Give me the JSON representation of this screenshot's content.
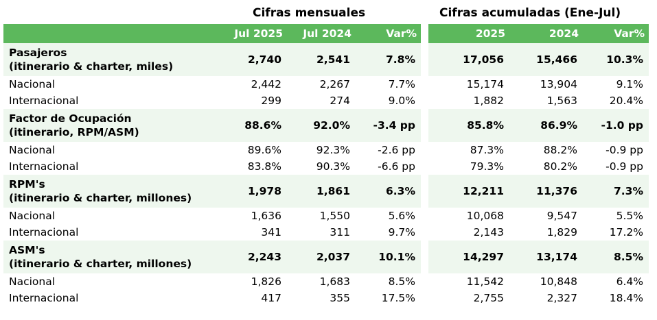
{
  "monthly_title": "Cifras mensuales",
  "cumulative_title": "Cifras acumuladas (Ene-Jul)",
  "headers": {
    "m1": "Jul 2025",
    "m2": "Jul 2024",
    "mvar": "Var%",
    "c1": "2025",
    "c2": "2024",
    "cvar": "Var%"
  },
  "groups": [
    {
      "label1": "Pasajeros",
      "label2": "(itinerario & charter, miles)",
      "values": [
        "2,740",
        "2,541",
        "7.8%",
        "17,056",
        "15,466",
        "10.3%"
      ],
      "rows": [
        {
          "label": "Nacional",
          "values": [
            "2,442",
            "2,267",
            "7.7%",
            "15,174",
            "13,904",
            "9.1%"
          ]
        },
        {
          "label": "Internacional",
          "values": [
            "299",
            "274",
            "9.0%",
            "1,882",
            "1,563",
            "20.4%"
          ]
        }
      ]
    },
    {
      "label1": "Factor de Ocupación",
      "label2": "(itinerario, RPM/ASM)",
      "values": [
        "88.6%",
        "92.0%",
        "-3.4 pp",
        "85.8%",
        "86.9%",
        "-1.0 pp"
      ],
      "rows": [
        {
          "label": "Nacional",
          "values": [
            "89.6%",
            "92.3%",
            "-2.6 pp",
            "87.3%",
            "88.2%",
            "-0.9 pp"
          ]
        },
        {
          "label": "Internacional",
          "values": [
            "83.8%",
            "90.3%",
            "-6.6 pp",
            "79.3%",
            "80.2%",
            "-0.9 pp"
          ]
        }
      ]
    },
    {
      "label1": "RPM's",
      "label2": "(itinerario & charter, millones)",
      "values": [
        "1,978",
        "1,861",
        "6.3%",
        "12,211",
        "11,376",
        "7.3%"
      ],
      "rows": [
        {
          "label": "Nacional",
          "values": [
            "1,636",
            "1,550",
            "5.6%",
            "10,068",
            "9,547",
            "5.5%"
          ]
        },
        {
          "label": "Internacional",
          "values": [
            "341",
            "311",
            "9.7%",
            "2,143",
            "1,829",
            "17.2%"
          ]
        }
      ]
    },
    {
      "label1": "ASM's",
      "label2": "(itinerario & charter, millones)",
      "values": [
        "2,243",
        "2,037",
        "10.1%",
        "14,297",
        "13,174",
        "8.5%"
      ],
      "rows": [
        {
          "label": "Nacional",
          "values": [
            "1,826",
            "1,683",
            "8.5%",
            "11,542",
            "10,848",
            "6.4%"
          ]
        },
        {
          "label": "Internacional",
          "values": [
            "417",
            "355",
            "17.5%",
            "2,755",
            "2,327",
            "18.4%"
          ]
        }
      ]
    }
  ]
}
